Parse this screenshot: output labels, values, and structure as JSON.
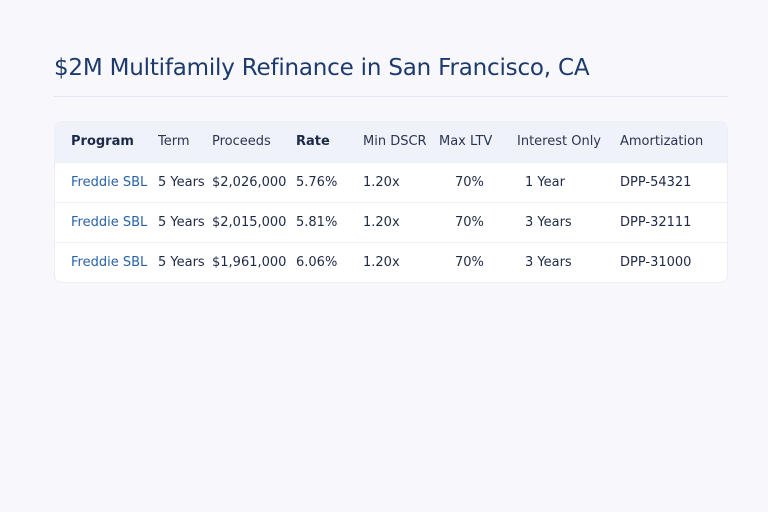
{
  "title": "$2M Multifamily Refinance in San Francisco, CA",
  "table": {
    "headers": [
      "Program",
      "Term",
      "Proceeds",
      "Rate",
      "Min DSCR",
      "Max LTV",
      "Interest Only",
      "Amortization"
    ],
    "rows": [
      [
        "Freddie SBL",
        "5 Years",
        "$2,026,000",
        "5.76%",
        "1.20x",
        "70%",
        "1 Year",
        "DPP-54321"
      ],
      [
        "Freddie SBL",
        "5 Years",
        "$2,015,000",
        "5.81%",
        "1.20x",
        "70%",
        "3 Years",
        "DPP-32111"
      ],
      [
        "Freddie SBL",
        "5 Years",
        "$1,961,000",
        "6.06%",
        "1.20x",
        "70%",
        "3 Years",
        "DPP-31000"
      ]
    ]
  },
  "colors": {
    "title": "#1c3a6b",
    "program_link": "#2a62a8",
    "header_bg": "#f0f2fa",
    "page_bg": "#f8f7fc"
  }
}
